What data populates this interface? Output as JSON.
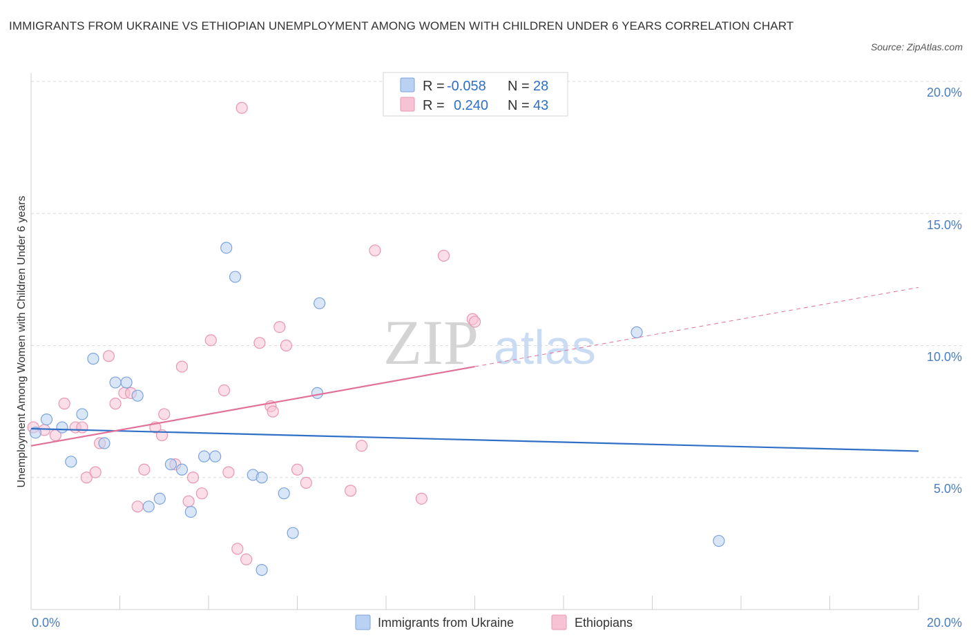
{
  "header": {
    "title": "IMMIGRANTS FROM UKRAINE VS ETHIOPIAN UNEMPLOYMENT AMONG WOMEN WITH CHILDREN UNDER 6 YEARS CORRELATION CHART",
    "source": "Source: ZipAtlas.com"
  },
  "watermark": {
    "zip": "ZIP",
    "atlas": "atlas"
  },
  "colors": {
    "blue_fill": "#b9d2f3",
    "blue_stroke": "#7ba3dc",
    "blue_line": "#2f6fc6",
    "pink_fill": "#f7c3d4",
    "pink_stroke": "#e896b2",
    "pink_line": "#e2719a",
    "axis_text": "#4a7cc4",
    "grid": "#d9d9d9"
  },
  "legend_top": {
    "rows": [
      {
        "r_label": "R =",
        "r_value": "-0.058",
        "n_label": "N =",
        "n_value": "28"
      },
      {
        "r_label": "R =",
        "r_value": "0.240",
        "n_label": "N =",
        "n_value": "43"
      }
    ]
  },
  "chart_data": {
    "type": "scatter",
    "title": "IMMIGRANTS FROM UKRAINE VS ETHIOPIAN UNEMPLOYMENT AMONG WOMEN WITH CHILDREN UNDER 6 YEARS CORRELATION CHART",
    "ylabel": "Unemployment Among Women with Children Under 6 years",
    "xlabel": "",
    "xlim": [
      0,
      20
    ],
    "ylim": [
      0,
      20
    ],
    "x_ticks": [
      "0.0%",
      "20.0%"
    ],
    "y_ticks": [
      "5.0%",
      "10.0%",
      "15.0%",
      "20.0%"
    ],
    "grid": true,
    "legend_position": "bottom",
    "series": [
      {
        "name": "Immigrants from Ukraine",
        "color": "#7ba3dc",
        "r": -0.058,
        "n": 28,
        "trend": {
          "x0": 0,
          "y0": 6.85,
          "x1": 20,
          "y1": 6.0,
          "dashed_from": null
        },
        "points": [
          [
            0.1,
            6.7
          ],
          [
            0.35,
            7.2
          ],
          [
            0.7,
            6.9
          ],
          [
            0.9,
            5.6
          ],
          [
            1.15,
            7.4
          ],
          [
            1.4,
            9.5
          ],
          [
            1.65,
            6.3
          ],
          [
            1.9,
            8.6
          ],
          [
            2.15,
            8.6
          ],
          [
            2.4,
            8.1
          ],
          [
            2.65,
            3.9
          ],
          [
            2.9,
            4.2
          ],
          [
            3.15,
            5.5
          ],
          [
            3.4,
            5.3
          ],
          [
            3.6,
            3.7
          ],
          [
            3.9,
            5.8
          ],
          [
            4.15,
            5.8
          ],
          [
            4.4,
            13.7
          ],
          [
            4.6,
            12.6
          ],
          [
            5.0,
            5.1
          ],
          [
            5.2,
            5.0
          ],
          [
            5.2,
            1.5
          ],
          [
            5.7,
            4.4
          ],
          [
            5.9,
            2.9
          ],
          [
            6.5,
            11.6
          ],
          [
            6.45,
            8.2
          ],
          [
            13.65,
            10.5
          ],
          [
            15.5,
            2.6
          ]
        ]
      },
      {
        "name": "Ethiopians",
        "color": "#e896b2",
        "r": 0.24,
        "n": 43,
        "trend": {
          "x0": 0,
          "y0": 6.2,
          "x1": 20,
          "y1": 12.2,
          "dashed_from": 10
        },
        "points": [
          [
            0.05,
            6.9
          ],
          [
            0.3,
            6.8
          ],
          [
            0.55,
            6.6
          ],
          [
            0.75,
            7.8
          ],
          [
            1.0,
            6.9
          ],
          [
            1.15,
            6.9
          ],
          [
            1.25,
            5.0
          ],
          [
            1.45,
            5.2
          ],
          [
            1.55,
            6.3
          ],
          [
            1.75,
            9.6
          ],
          [
            1.9,
            7.8
          ],
          [
            2.1,
            8.2
          ],
          [
            2.25,
            8.2
          ],
          [
            2.4,
            3.9
          ],
          [
            2.55,
            5.3
          ],
          [
            2.8,
            6.9
          ],
          [
            2.95,
            6.6
          ],
          [
            3.0,
            7.4
          ],
          [
            3.25,
            5.5
          ],
          [
            3.4,
            9.2
          ],
          [
            3.55,
            4.1
          ],
          [
            3.65,
            5.0
          ],
          [
            3.85,
            4.4
          ],
          [
            4.05,
            10.2
          ],
          [
            4.35,
            8.3
          ],
          [
            4.45,
            5.2
          ],
          [
            4.65,
            2.3
          ],
          [
            4.75,
            19.0
          ],
          [
            4.85,
            1.9
          ],
          [
            5.15,
            10.1
          ],
          [
            5.4,
            7.7
          ],
          [
            5.45,
            7.5
          ],
          [
            5.6,
            10.7
          ],
          [
            5.75,
            10.0
          ],
          [
            6.0,
            5.3
          ],
          [
            6.2,
            4.8
          ],
          [
            7.2,
            4.5
          ],
          [
            7.45,
            6.2
          ],
          [
            7.75,
            13.6
          ],
          [
            8.8,
            4.2
          ],
          [
            9.3,
            13.4
          ],
          [
            9.95,
            11.0
          ],
          [
            10.0,
            10.9
          ]
        ]
      }
    ]
  }
}
